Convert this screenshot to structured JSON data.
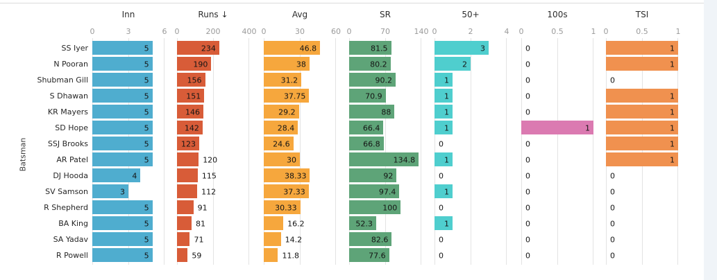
{
  "y_axis_title": "Batsman",
  "chart_data": {
    "type": "bar",
    "orientation": "horizontal",
    "title": "",
    "ylabel": "Batsman",
    "grid": true,
    "legend": false,
    "categories": [
      "SS Iyer",
      "N Pooran",
      "Shubman Gill",
      "S Dhawan",
      "KR Mayers",
      "SD Hope",
      "SSJ Brooks",
      "AR Patel",
      "DJ Hooda",
      "SV Samson",
      "R Shepherd",
      "BA King",
      "SA Yadav",
      "R Powell"
    ],
    "panels": [
      {
        "key": "inn",
        "title": "Inn",
        "sorted": false,
        "ticks": [
          "0",
          "3",
          "6"
        ],
        "xlim": [
          0,
          6
        ],
        "max": 6,
        "color": "#4fadcf",
        "values": [
          "5",
          "5",
          "5",
          "5",
          "5",
          "5",
          "5",
          "5",
          "4",
          "3",
          "5",
          "5",
          "5",
          "5"
        ]
      },
      {
        "key": "runs",
        "title": "Runs ↓",
        "sorted": true,
        "ticks": [
          "0",
          "200",
          "400"
        ],
        "xlim": [
          0,
          400
        ],
        "max": 400,
        "color": "#d85c38",
        "values": [
          "234",
          "190",
          "156",
          "151",
          "146",
          "142",
          "123",
          "120",
          "115",
          "112",
          "91",
          "81",
          "71",
          "59"
        ]
      },
      {
        "key": "avg",
        "title": "Avg",
        "sorted": false,
        "ticks": [
          "0",
          "30",
          "60"
        ],
        "xlim": [
          0,
          60
        ],
        "max": 60,
        "color": "#f6a73d",
        "values": [
          "46.8",
          "38",
          "31.2",
          "37.75",
          "29.2",
          "28.4",
          "24.6",
          "30",
          "38.33",
          "37.33",
          "30.33",
          "16.2",
          "14.2",
          "11.8"
        ]
      },
      {
        "key": "sr",
        "title": "SR",
        "sorted": false,
        "ticks": [
          "0",
          "70",
          "140"
        ],
        "xlim": [
          0,
          140
        ],
        "max": 140,
        "color": "#5ea478",
        "values": [
          "81.5",
          "80.2",
          "90.2",
          "70.9",
          "88",
          "66.4",
          "66.8",
          "134.8",
          "92",
          "97.4",
          "100",
          "52.3",
          "82.6",
          "77.6"
        ]
      },
      {
        "key": "50plus",
        "title": "50+",
        "sorted": false,
        "ticks": [
          "0",
          "2",
          "4"
        ],
        "xlim": [
          0,
          4
        ],
        "max": 4,
        "color": "#4fcece",
        "values": [
          "3",
          "2",
          "1",
          "1",
          "1",
          "1",
          "0",
          "1",
          "0",
          "1",
          "0",
          "1",
          "0",
          "0"
        ]
      },
      {
        "key": "100s",
        "title": "100s",
        "sorted": false,
        "ticks": [
          "0",
          "0.5",
          "1"
        ],
        "xlim": [
          0,
          1
        ],
        "max": 1,
        "color": "#db7ab1",
        "values": [
          "0",
          "0",
          "0",
          "0",
          "0",
          "1",
          "0",
          "0",
          "0",
          "0",
          "0",
          "0",
          "0",
          "0"
        ]
      },
      {
        "key": "tsi",
        "title": "TSI",
        "sorted": false,
        "ticks": [
          "0",
          "0.5",
          "1"
        ],
        "xlim": [
          0,
          1
        ],
        "max": 1,
        "color": "#f0914f",
        "values": [
          "1",
          "1",
          "0",
          "1",
          "1",
          "1",
          "1",
          "1",
          "0",
          "0",
          "0",
          "0",
          "0",
          "0"
        ]
      }
    ]
  }
}
